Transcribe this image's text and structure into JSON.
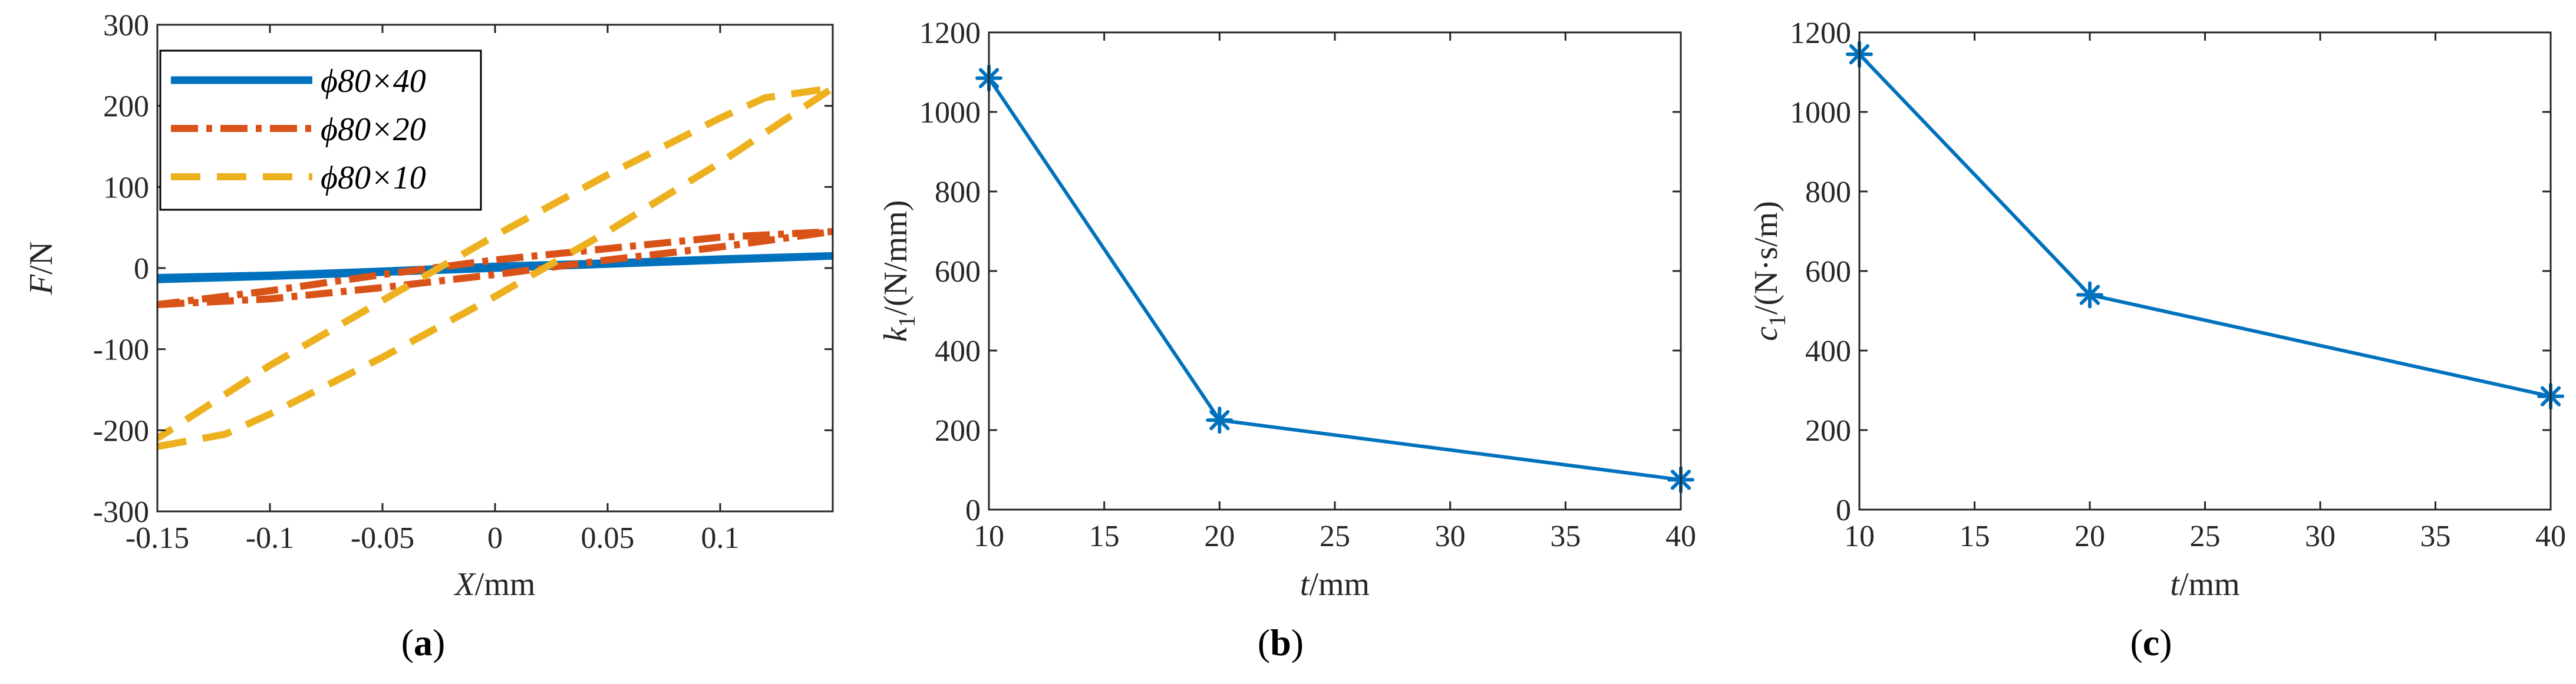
{
  "colors": {
    "blue": "#0072BD",
    "orange": "#D95319",
    "yellow": "#EDB120",
    "axis": "#262626"
  },
  "chart_data": [
    {
      "id": "a",
      "type": "line",
      "caption_letter": "a",
      "xlabel_var": "X",
      "xlabel_unit": "/mm",
      "ylabel_var": "F",
      "ylabel_unit": "/N",
      "xlim": [
        -0.15,
        0.15
      ],
      "ylim": [
        -300,
        300
      ],
      "xticks": [
        -0.15,
        -0.1,
        -0.05,
        0,
        0.05,
        0.1
      ],
      "xtick_labels": [
        "-0.15",
        "-0.1",
        "-0.05",
        "0",
        "0.05",
        "0.1"
      ],
      "yticks": [
        -300,
        -200,
        -100,
        0,
        100,
        200,
        300
      ],
      "ytick_labels": [
        "-300",
        "-200",
        "-100",
        "0",
        "100",
        "200",
        "300"
      ],
      "legend_position": "top-left",
      "series": [
        {
          "name": "ϕ80×40",
          "color": "#0072BD",
          "style": "solid",
          "x": [
            -0.15,
            -0.1,
            -0.05,
            0,
            0.05,
            0.1,
            0.15,
            0.1,
            0.05,
            0,
            -0.05,
            -0.1,
            -0.15
          ],
          "y": [
            -14,
            -10,
            -5,
            0,
            5,
            10,
            15,
            11,
            6,
            2,
            -4,
            -9,
            -12
          ]
        },
        {
          "name": "ϕ80×20",
          "color": "#D95319",
          "style": "dashdot",
          "x": [
            -0.15,
            -0.1,
            -0.05,
            0,
            0.05,
            0.1,
            0.15,
            0.1,
            0.05,
            0,
            -0.05,
            -0.1,
            -0.15
          ],
          "y": [
            -45,
            -38,
            -24,
            -8,
            10,
            26,
            45,
            38,
            24,
            10,
            -8,
            -28,
            -45
          ]
        },
        {
          "name": "ϕ80×10",
          "color": "#EDB120",
          "style": "dashed",
          "x": [
            -0.15,
            -0.12,
            -0.1,
            -0.05,
            0,
            0.05,
            0.1,
            0.15,
            0.12,
            0.1,
            0.05,
            0,
            -0.05,
            -0.1,
            -0.15
          ],
          "y": [
            -220,
            -205,
            -180,
            -110,
            -35,
            45,
            130,
            222,
            210,
            185,
            115,
            40,
            -40,
            -120,
            -210
          ]
        }
      ]
    },
    {
      "id": "b",
      "type": "line",
      "caption_letter": "b",
      "xlabel_var": "t",
      "xlabel_unit": "/mm",
      "ylabel_var": "k",
      "ylabel_sub": "1",
      "ylabel_unit": "/(N/mm)",
      "xlim": [
        10,
        40
      ],
      "ylim": [
        0,
        1200
      ],
      "xticks": [
        10,
        15,
        20,
        25,
        30,
        35,
        40
      ],
      "xtick_labels": [
        "10",
        "15",
        "20",
        "25",
        "30",
        "35",
        "40"
      ],
      "yticks": [
        0,
        200,
        400,
        600,
        800,
        1000,
        1200
      ],
      "ytick_labels": [
        "0",
        "200",
        "400",
        "600",
        "800",
        "1000",
        "1200"
      ],
      "series": [
        {
          "color": "#0072BD",
          "marker": "asterisk",
          "x": [
            10,
            20,
            40
          ],
          "y": [
            1085,
            225,
            75
          ]
        }
      ]
    },
    {
      "id": "c",
      "type": "line",
      "caption_letter": "c",
      "xlabel_var": "t",
      "xlabel_unit": "/mm",
      "ylabel_var": "c",
      "ylabel_sub": "1",
      "ylabel_unit": "/(N·s/m)",
      "xlim": [
        10,
        40
      ],
      "ylim": [
        0,
        1200
      ],
      "xticks": [
        10,
        15,
        20,
        25,
        30,
        35,
        40
      ],
      "xtick_labels": [
        "10",
        "15",
        "20",
        "25",
        "30",
        "35",
        "40"
      ],
      "yticks": [
        0,
        200,
        400,
        600,
        800,
        1000,
        1200
      ],
      "ytick_labels": [
        "0",
        "200",
        "400",
        "600",
        "800",
        "1000",
        "1200"
      ],
      "series": [
        {
          "color": "#0072BD",
          "marker": "asterisk",
          "x": [
            10,
            20,
            40
          ],
          "y": [
            1145,
            540,
            285
          ]
        }
      ]
    }
  ]
}
